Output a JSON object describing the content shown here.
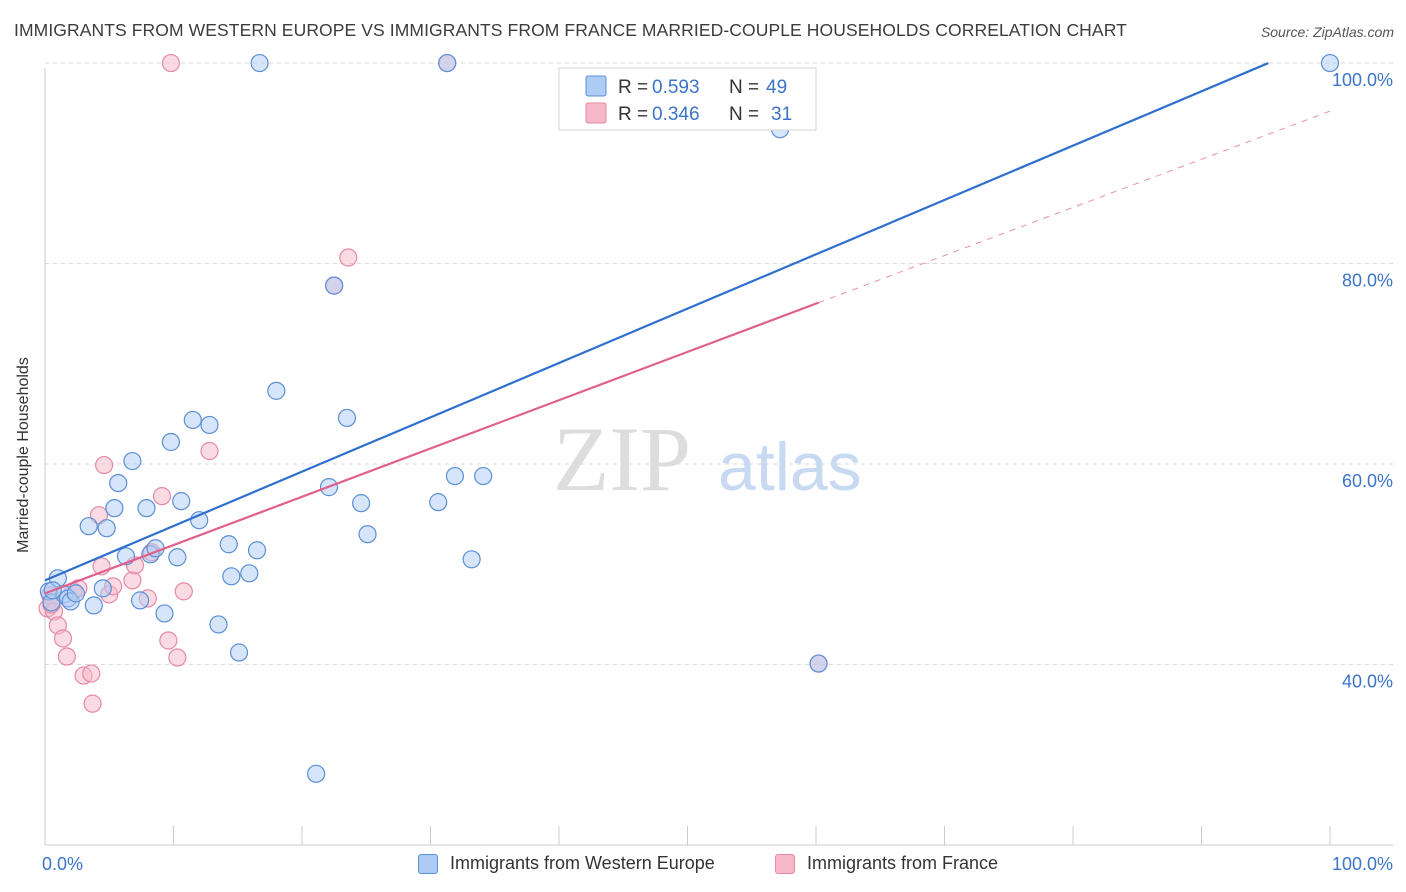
{
  "header": {
    "title": "IMMIGRANTS FROM WESTERN EUROPE VS IMMIGRANTS FROM FRANCE MARRIED-COUPLE HOUSEHOLDS CORRELATION CHART",
    "source": "Source: ZipAtlas.com"
  },
  "watermark": {
    "zip": "ZIP",
    "atlas": "atlas"
  },
  "colors": {
    "blue_fill": "#aecbf3",
    "blue_stroke": "#5b8fd6",
    "blue_line": "#2e6fcf",
    "pink_fill": "#f6b8c9",
    "pink_stroke": "#e58aa6",
    "pink_line": "#e0608c",
    "tick_label": "#3b74c9",
    "grid": "#d9d9d9"
  },
  "legend": {
    "rows": [
      {
        "r_label": "R = ",
        "r_value": "0.593",
        "n_label": "N = ",
        "n_value": "49"
      },
      {
        "r_label": "R = ",
        "r_value": "0.346",
        "n_label": "N = ",
        "n_value": "31"
      }
    ]
  },
  "chart_data": {
    "type": "scatter",
    "title": "IMMIGRANTS FROM WESTERN EUROPE VS IMMIGRANTS FROM FRANCE MARRIED-COUPLE HOUSEHOLDS CORRELATION CHART",
    "xlabel": "",
    "ylabel": "Married-couple Households",
    "xlim": [
      0,
      100
    ],
    "ylim": [
      22,
      102
    ],
    "x_tick_labels": [
      "0.0%",
      "100.0%"
    ],
    "y_ticks": [
      40,
      60,
      80,
      100
    ],
    "y_tick_labels": [
      "40.0%",
      "60.0%",
      "80.0%",
      "100.0%"
    ],
    "legend_position": "top-center",
    "series": [
      {
        "name": "Immigrants from Western Europe",
        "r": 0.593,
        "n": 49,
        "trend": {
          "x0": 0,
          "y0": 48.4,
          "x1": 95.2,
          "y1": 100
        },
        "points": [
          [
            0.3,
            47.3
          ],
          [
            0.5,
            46.2
          ],
          [
            1.0,
            48.6
          ],
          [
            1.5,
            47.0
          ],
          [
            1.8,
            46.6
          ],
          [
            2.0,
            46.3
          ],
          [
            2.4,
            47.1
          ],
          [
            3.4,
            53.8
          ],
          [
            3.8,
            45.9
          ],
          [
            4.5,
            47.6
          ],
          [
            4.8,
            53.6
          ],
          [
            5.4,
            55.6
          ],
          [
            5.7,
            58.1
          ],
          [
            6.3,
            50.8
          ],
          [
            6.8,
            60.3
          ],
          [
            7.4,
            46.4
          ],
          [
            7.9,
            55.6
          ],
          [
            8.2,
            51.0
          ],
          [
            8.6,
            51.6
          ],
          [
            9.3,
            45.1
          ],
          [
            9.8,
            62.2
          ],
          [
            10.3,
            50.7
          ],
          [
            10.6,
            56.3
          ],
          [
            11.5,
            64.4
          ],
          [
            12.0,
            54.4
          ],
          [
            12.8,
            63.9
          ],
          [
            13.5,
            44.0
          ],
          [
            14.3,
            52.0
          ],
          [
            14.5,
            48.8
          ],
          [
            15.1,
            41.2
          ],
          [
            15.9,
            49.1
          ],
          [
            16.5,
            51.4
          ],
          [
            16.7,
            100.0
          ],
          [
            18.0,
            67.3
          ],
          [
            21.1,
            29.1
          ],
          [
            22.1,
            57.7
          ],
          [
            22.5,
            77.8
          ],
          [
            23.5,
            64.6
          ],
          [
            24.6,
            56.1
          ],
          [
            25.1,
            53.0
          ],
          [
            30.6,
            56.2
          ],
          [
            31.3,
            100.0
          ],
          [
            31.9,
            58.8
          ],
          [
            33.2,
            50.5
          ],
          [
            34.1,
            58.8
          ],
          [
            57.2,
            93.4
          ],
          [
            60.2,
            40.1
          ],
          [
            100.0,
            100.0
          ],
          [
            0.6,
            47.4
          ]
        ]
      },
      {
        "name": "Immigrants from France",
        "r": 0.346,
        "n": 31,
        "trend": {
          "x0": 0,
          "y0": 47.1,
          "x1": 60.2,
          "y1": 76.1
        },
        "trend_extension": {
          "x0": 60.2,
          "y0": 76.1,
          "x1": 100,
          "y1": 95.2
        },
        "points": [
          [
            0.2,
            45.6
          ],
          [
            0.4,
            46.9
          ],
          [
            0.7,
            45.3
          ],
          [
            1.0,
            43.9
          ],
          [
            1.4,
            42.6
          ],
          [
            1.7,
            40.8
          ],
          [
            2.2,
            47.3
          ],
          [
            2.6,
            47.6
          ],
          [
            3.0,
            38.9
          ],
          [
            3.6,
            39.1
          ],
          [
            3.7,
            36.1
          ],
          [
            4.2,
            54.9
          ],
          [
            4.4,
            49.8
          ],
          [
            4.6,
            59.9
          ],
          [
            5.0,
            47.0
          ],
          [
            5.3,
            47.8
          ],
          [
            6.8,
            48.4
          ],
          [
            7.0,
            49.9
          ],
          [
            8.0,
            46.6
          ],
          [
            8.3,
            51.2
          ],
          [
            9.1,
            56.8
          ],
          [
            9.6,
            42.4
          ],
          [
            10.3,
            40.7
          ],
          [
            10.8,
            47.3
          ],
          [
            12.8,
            61.3
          ],
          [
            22.5,
            77.8
          ],
          [
            23.6,
            80.6
          ],
          [
            31.3,
            100.0
          ],
          [
            60.2,
            40.1
          ],
          [
            9.8,
            100.0
          ],
          [
            0.5,
            46.0
          ]
        ]
      }
    ]
  },
  "bottom_legend": {
    "items": [
      {
        "label": "Immigrants from Western Europe"
      },
      {
        "label": "Immigrants from France"
      }
    ]
  }
}
